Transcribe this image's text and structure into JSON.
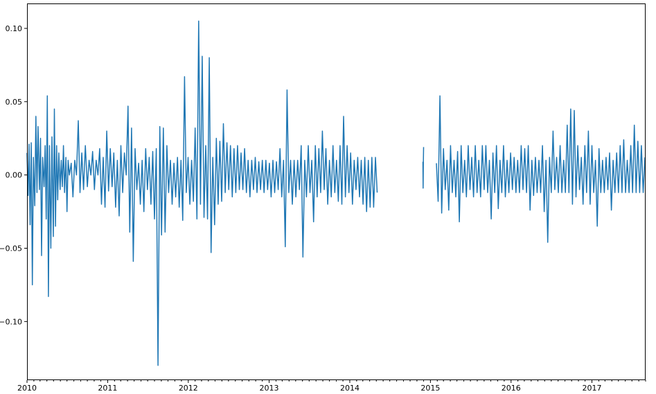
{
  "chart_data": {
    "type": "line",
    "title": "",
    "xlabel": "",
    "ylabel": "",
    "x_is_date": true,
    "xlim": [
      "2010-01-01",
      "2017-09-01"
    ],
    "ylim": [
      -0.14,
      0.117
    ],
    "x_ticks": [
      {
        "date": "2010-01-01",
        "label": "2010"
      },
      {
        "date": "2011-01-01",
        "label": "2011"
      },
      {
        "date": "2012-01-01",
        "label": "2012"
      },
      {
        "date": "2013-01-01",
        "label": "2013"
      },
      {
        "date": "2014-01-01",
        "label": "2014"
      },
      {
        "date": "2015-01-01",
        "label": "2015"
      },
      {
        "date": "2016-01-01",
        "label": "2016"
      },
      {
        "date": "2017-01-01",
        "label": "2017"
      }
    ],
    "y_ticks": [
      {
        "value": 0.1,
        "label": "0.10"
      },
      {
        "value": 0.05,
        "label": "0.05"
      },
      {
        "value": 0.0,
        "label": "0.00"
      },
      {
        "value": -0.05,
        "label": "−0.05"
      },
      {
        "value": -0.1,
        "label": "−0.10"
      }
    ],
    "grid": false,
    "legend": "none",
    "colors": {
      "series": "#1f77b4"
    },
    "series": [
      {
        "segments": [
          {
            "x": [
              "2010-01-01",
              "2010-01-06",
              "2010-01-10",
              "2010-01-15",
              "2010-01-20",
              "2010-01-25",
              "2010-01-30",
              "2010-02-05",
              "2010-02-10",
              "2010-02-15",
              "2010-02-20",
              "2010-02-26",
              "2010-03-03",
              "2010-03-08",
              "2010-03-13",
              "2010-03-19",
              "2010-03-24",
              "2010-03-29",
              "2010-04-03",
              "2010-04-08",
              "2010-04-13",
              "2010-04-19",
              "2010-04-24",
              "2010-04-30",
              "2010-05-05",
              "2010-05-10",
              "2010-05-15",
              "2010-05-20",
              "2010-05-25",
              "2010-05-31",
              "2010-06-05",
              "2010-06-10",
              "2010-06-15",
              "2010-06-20",
              "2010-06-26",
              "2010-07-01",
              "2010-07-06",
              "2010-07-12",
              "2010-07-20",
              "2010-07-28",
              "2010-08-05",
              "2010-08-13",
              "2010-08-21",
              "2010-08-29",
              "2010-09-06",
              "2010-09-14",
              "2010-09-22",
              "2010-10-01",
              "2010-10-09",
              "2010-10-17",
              "2010-10-25",
              "2010-11-02",
              "2010-11-10",
              "2010-11-18",
              "2010-11-26",
              "2010-12-04",
              "2010-12-12",
              "2010-12-20",
              "2010-12-28",
              "2011-01-05",
              "2011-01-13",
              "2011-01-21",
              "2011-01-29",
              "2011-02-06",
              "2011-02-14",
              "2011-02-22",
              "2011-03-02",
              "2011-03-10",
              "2011-03-18",
              "2011-03-26",
              "2011-04-03",
              "2011-04-11",
              "2011-04-19",
              "2011-04-27",
              "2011-05-05",
              "2011-05-13",
              "2011-05-21",
              "2011-05-29",
              "2011-06-06",
              "2011-06-14",
              "2011-06-22",
              "2011-06-30",
              "2011-07-08",
              "2011-07-16",
              "2011-07-24",
              "2011-08-01",
              "2011-08-09",
              "2011-08-17",
              "2011-08-25",
              "2011-09-02",
              "2011-09-10",
              "2011-09-18",
              "2011-09-26",
              "2011-10-04",
              "2011-10-12",
              "2011-10-20",
              "2011-10-28",
              "2011-11-05",
              "2011-11-13",
              "2011-11-21",
              "2011-11-29",
              "2011-12-07",
              "2011-12-15",
              "2011-12-23",
              "2011-12-31",
              "2012-01-08",
              "2012-01-16",
              "2012-01-24",
              "2012-02-01",
              "2012-02-09",
              "2012-02-17",
              "2012-02-25",
              "2012-03-04",
              "2012-03-12",
              "2012-03-20",
              "2012-03-28",
              "2012-04-05",
              "2012-04-13",
              "2012-04-21",
              "2012-04-29",
              "2012-05-07",
              "2012-05-15",
              "2012-05-23",
              "2012-05-31",
              "2012-06-08",
              "2012-06-16",
              "2012-06-24",
              "2012-07-02",
              "2012-07-10",
              "2012-07-18",
              "2012-07-26",
              "2012-08-03",
              "2012-08-11",
              "2012-08-19",
              "2012-08-27",
              "2012-09-04",
              "2012-09-12",
              "2012-09-20",
              "2012-09-28",
              "2012-10-06",
              "2012-10-14",
              "2012-10-22",
              "2012-10-30",
              "2012-11-07",
              "2012-11-15",
              "2012-11-23",
              "2012-12-01",
              "2012-12-09",
              "2012-12-17",
              "2012-12-25",
              "2013-01-02",
              "2013-01-10",
              "2013-01-18",
              "2013-01-26",
              "2013-02-03",
              "2013-02-11",
              "2013-02-19",
              "2013-02-27",
              "2013-03-07",
              "2013-03-15",
              "2013-03-23",
              "2013-03-31",
              "2013-04-08",
              "2013-04-16",
              "2013-04-24",
              "2013-05-02",
              "2013-05-10",
              "2013-05-18",
              "2013-05-26",
              "2013-06-03",
              "2013-06-11",
              "2013-06-19",
              "2013-06-27",
              "2013-07-05",
              "2013-07-13",
              "2013-07-21",
              "2013-07-29",
              "2013-08-06",
              "2013-08-14",
              "2013-08-22",
              "2013-08-30",
              "2013-09-07",
              "2013-09-15",
              "2013-09-23",
              "2013-10-01",
              "2013-10-09",
              "2013-10-17",
              "2013-10-25",
              "2013-11-02",
              "2013-11-10",
              "2013-11-18",
              "2013-11-26",
              "2013-12-04",
              "2013-12-12",
              "2013-12-20",
              "2013-12-28",
              "2014-01-05",
              "2014-01-13",
              "2014-01-21",
              "2014-01-29",
              "2014-02-06",
              "2014-02-14",
              "2014-02-22",
              "2014-03-02",
              "2014-03-10",
              "2014-03-18",
              "2014-03-26",
              "2014-04-03",
              "2014-04-11",
              "2014-04-19",
              "2014-04-27",
              "2014-05-05"
            ],
            "y": [
              0.015,
              -0.014,
              0.021,
              -0.034,
              0.022,
              -0.075,
              0.012,
              -0.021,
              0.04,
              -0.012,
              0.033,
              -0.01,
              0.025,
              -0.055,
              0.012,
              -0.008,
              0.02,
              -0.03,
              0.054,
              -0.083,
              0.02,
              -0.05,
              0.026,
              -0.042,
              0.045,
              -0.035,
              0.02,
              -0.017,
              0.015,
              -0.01,
              0.01,
              -0.008,
              0.02,
              -0.012,
              0.012,
              -0.025,
              0.01,
              0.0,
              0.008,
              -0.015,
              0.01,
              0.0,
              0.037,
              -0.012,
              0.015,
              -0.01,
              0.02,
              -0.008,
              0.01,
              0.0,
              0.016,
              -0.01,
              0.01,
              0.0,
              0.018,
              -0.02,
              0.012,
              -0.022,
              0.03,
              -0.011,
              0.018,
              -0.008,
              0.015,
              -0.022,
              0.01,
              -0.028,
              0.02,
              -0.012,
              0.015,
              0.0,
              0.047,
              -0.039,
              0.032,
              -0.059,
              0.018,
              -0.01,
              0.008,
              -0.02,
              0.01,
              -0.025,
              0.018,
              -0.01,
              0.012,
              -0.02,
              0.016,
              -0.03,
              0.018,
              -0.13,
              0.033,
              -0.041,
              0.032,
              -0.039,
              0.02,
              -0.012,
              0.01,
              -0.02,
              0.008,
              -0.015,
              0.012,
              -0.022,
              0.01,
              -0.031,
              0.067,
              -0.012,
              0.012,
              -0.02,
              0.01,
              -0.018,
              0.032,
              -0.03,
              0.105,
              -0.02,
              0.081,
              -0.029,
              0.02,
              -0.03,
              0.08,
              -0.053,
              0.012,
              -0.034,
              0.025,
              -0.02,
              0.023,
              -0.018,
              0.035,
              -0.012,
              0.022,
              -0.01,
              0.02,
              -0.015,
              0.018,
              -0.012,
              0.02,
              -0.01,
              0.015,
              -0.01,
              0.018,
              -0.012,
              0.01,
              -0.015,
              0.01,
              -0.01,
              0.012,
              -0.012,
              0.009,
              -0.01,
              0.01,
              -0.012,
              0.01,
              -0.01,
              0.008,
              -0.015,
              0.01,
              -0.012,
              0.009,
              -0.01,
              0.018,
              -0.015,
              0.01,
              -0.049,
              0.058,
              -0.012,
              0.01,
              -0.02,
              0.01,
              -0.015,
              0.01,
              -0.01,
              0.02,
              -0.056,
              0.01,
              -0.015,
              0.02,
              -0.012,
              0.01,
              -0.032,
              0.02,
              -0.015,
              0.018,
              -0.012,
              0.03,
              -0.01,
              0.018,
              -0.02,
              0.01,
              -0.015,
              0.02,
              -0.012,
              0.01,
              -0.018,
              0.02,
              -0.02,
              0.04,
              -0.015,
              0.02,
              -0.012,
              0.015,
              -0.02,
              0.01,
              -0.01,
              0.012,
              -0.015,
              0.01,
              -0.02,
              0.012,
              -0.025,
              0.01,
              -0.022,
              0.012,
              -0.022,
              0.012,
              -0.012
            ]
          },
          {
            "x": [
              "2014-11-28",
              "2014-11-29",
              "2014-11-30",
              "2014-12-01"
            ],
            "y": [
              0.009,
              -0.009,
              0.01,
              0.019
            ]
          },
          {
            "x": [
              "2015-01-28",
              "2015-02-05",
              "2015-02-13",
              "2015-02-21",
              "2015-03-01",
              "2015-03-09",
              "2015-03-17",
              "2015-03-25",
              "2015-04-02",
              "2015-04-10",
              "2015-04-18",
              "2015-04-26",
              "2015-05-04",
              "2015-05-12",
              "2015-05-20",
              "2015-05-28",
              "2015-06-05",
              "2015-06-13",
              "2015-06-21",
              "2015-06-29",
              "2015-07-07",
              "2015-07-15",
              "2015-07-23",
              "2015-07-31",
              "2015-08-08",
              "2015-08-16",
              "2015-08-24",
              "2015-09-01",
              "2015-09-09",
              "2015-09-17",
              "2015-09-25",
              "2015-10-03",
              "2015-10-11",
              "2015-10-19",
              "2015-10-27",
              "2015-11-04",
              "2015-11-12",
              "2015-11-20",
              "2015-11-28",
              "2015-12-06",
              "2015-12-14",
              "2015-12-22",
              "2015-12-30",
              "2016-01-07",
              "2016-01-15",
              "2016-01-23",
              "2016-01-31",
              "2016-02-08",
              "2016-02-16",
              "2016-02-24",
              "2016-03-03",
              "2016-03-11",
              "2016-03-19",
              "2016-03-27",
              "2016-04-04",
              "2016-04-12",
              "2016-04-20",
              "2016-04-28",
              "2016-05-06",
              "2016-05-14",
              "2016-05-22",
              "2016-05-30",
              "2016-06-07",
              "2016-06-15",
              "2016-06-23",
              "2016-07-01",
              "2016-07-09",
              "2016-07-17",
              "2016-07-25",
              "2016-08-02",
              "2016-08-10",
              "2016-08-18",
              "2016-08-26",
              "2016-09-03",
              "2016-09-11",
              "2016-09-19",
              "2016-09-27",
              "2016-10-05",
              "2016-10-13",
              "2016-10-21",
              "2016-10-29",
              "2016-11-06",
              "2016-11-14",
              "2016-11-22",
              "2016-11-30",
              "2016-12-08",
              "2016-12-16",
              "2016-12-24",
              "2017-01-01",
              "2017-01-09",
              "2017-01-17",
              "2017-01-25",
              "2017-02-02",
              "2017-02-10",
              "2017-02-18",
              "2017-02-26",
              "2017-03-06",
              "2017-03-14",
              "2017-03-22",
              "2017-03-30",
              "2017-04-07",
              "2017-04-15",
              "2017-04-23",
              "2017-05-01",
              "2017-05-09",
              "2017-05-17",
              "2017-05-25",
              "2017-06-02",
              "2017-06-10",
              "2017-06-18",
              "2017-06-26",
              "2017-07-04",
              "2017-07-12",
              "2017-07-20",
              "2017-07-28",
              "2017-08-05",
              "2017-08-13",
              "2017-08-21",
              "2017-08-29"
            ],
            "y": [
              0.008,
              -0.018,
              0.054,
              -0.026,
              0.018,
              -0.01,
              0.01,
              -0.024,
              0.02,
              -0.012,
              0.01,
              -0.015,
              0.016,
              -0.032,
              0.02,
              -0.012,
              0.01,
              -0.015,
              0.02,
              -0.01,
              0.012,
              -0.015,
              0.02,
              -0.012,
              0.01,
              -0.015,
              0.02,
              -0.01,
              0.02,
              -0.012,
              0.01,
              -0.03,
              0.015,
              -0.012,
              0.02,
              -0.023,
              0.01,
              -0.012,
              0.02,
              -0.015,
              0.01,
              -0.012,
              0.015,
              -0.01,
              0.012,
              -0.012,
              0.01,
              -0.012,
              0.02,
              -0.01,
              0.018,
              -0.012,
              0.02,
              -0.024,
              0.01,
              -0.014,
              0.012,
              -0.012,
              0.01,
              -0.012,
              0.02,
              -0.025,
              0.01,
              -0.046,
              0.012,
              -0.012,
              0.03,
              -0.01,
              0.012,
              -0.012,
              0.02,
              -0.012,
              0.01,
              -0.012,
              0.034,
              -0.012,
              0.045,
              -0.02,
              0.044,
              -0.015,
              0.02,
              -0.01,
              0.012,
              -0.02,
              0.02,
              -0.012,
              0.03,
              -0.02,
              0.02,
              -0.012,
              0.01,
              -0.035,
              0.018,
              -0.012,
              0.01,
              -0.012,
              0.012,
              -0.01,
              0.015,
              -0.024,
              0.01,
              -0.012,
              0.015,
              -0.012,
              0.02,
              -0.012,
              0.024,
              -0.012,
              0.01,
              -0.012,
              0.02,
              -0.012,
              0.034,
              -0.012,
              0.023,
              -0.012,
              0.02,
              -0.012,
              0.012
            ]
          }
        ]
      }
    ]
  }
}
